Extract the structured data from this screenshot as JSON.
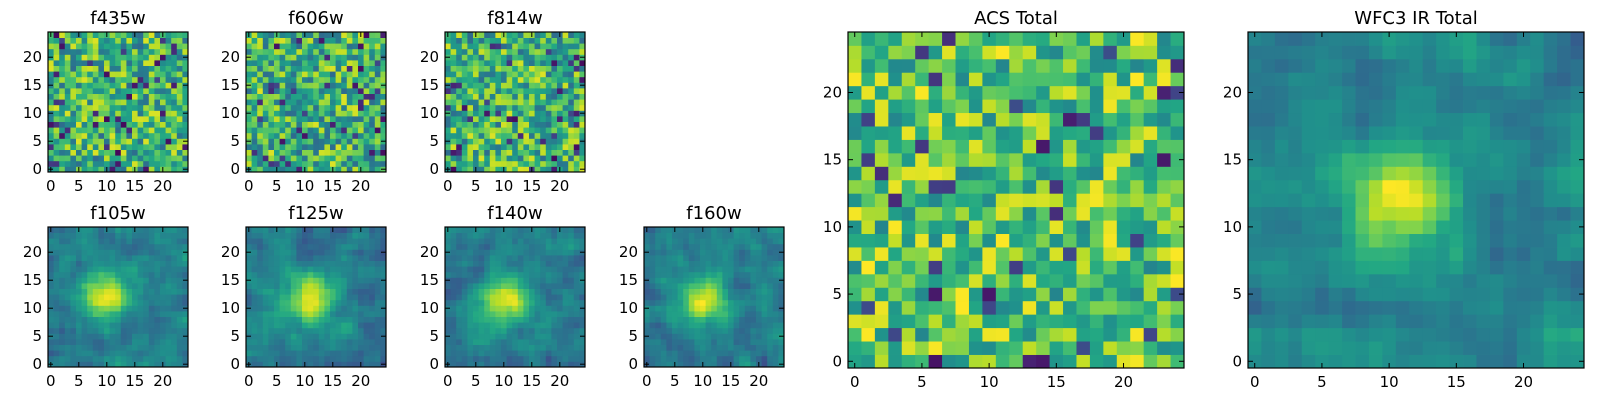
{
  "figure": {
    "description_free": true
  },
  "chart_data": [
    {
      "type": "heatmap",
      "title": "f435w",
      "colormap": "viridis",
      "grid_size": 25,
      "xlim": [
        0,
        24
      ],
      "ylim": [
        0,
        24
      ],
      "xticks": [
        0,
        5,
        10,
        15,
        20
      ],
      "yticks": [
        0,
        5,
        10,
        15,
        20
      ],
      "xlabel": "",
      "ylabel": "",
      "pattern": "noise",
      "seed": 11
    },
    {
      "type": "heatmap",
      "title": "f606w",
      "colormap": "viridis",
      "grid_size": 25,
      "xlim": [
        0,
        24
      ],
      "ylim": [
        0,
        24
      ],
      "xticks": [
        0,
        5,
        10,
        15,
        20
      ],
      "yticks": [
        0,
        5,
        10,
        15,
        20
      ],
      "xlabel": "",
      "ylabel": "",
      "pattern": "noise",
      "seed": 23
    },
    {
      "type": "heatmap",
      "title": "f814w",
      "colormap": "viridis",
      "grid_size": 25,
      "xlim": [
        0,
        24
      ],
      "ylim": [
        0,
        24
      ],
      "xticks": [
        0,
        5,
        10,
        15,
        20
      ],
      "yticks": [
        0,
        5,
        10,
        15,
        20
      ],
      "xlabel": "",
      "ylabel": "",
      "pattern": "noise",
      "seed": 37
    },
    {
      "type": "heatmap",
      "title": "f105w",
      "colormap": "viridis",
      "grid_size": 25,
      "xlim": [
        0,
        24
      ],
      "ylim": [
        0,
        24
      ],
      "xticks": [
        0,
        5,
        10,
        15,
        20
      ],
      "yticks": [
        0,
        5,
        10,
        15,
        20
      ],
      "xlabel": "",
      "ylabel": "",
      "pattern": "source",
      "source_center": [
        10,
        12.5
      ],
      "seed": 41
    },
    {
      "type": "heatmap",
      "title": "f125w",
      "colormap": "viridis",
      "grid_size": 25,
      "xlim": [
        0,
        24
      ],
      "ylim": [
        0,
        24
      ],
      "xticks": [
        0,
        5,
        10,
        15,
        20
      ],
      "yticks": [
        0,
        5,
        10,
        15,
        20
      ],
      "xlabel": "",
      "ylabel": "",
      "pattern": "source",
      "source_center": [
        11,
        11.5
      ],
      "seed": 53
    },
    {
      "type": "heatmap",
      "title": "f140w",
      "colormap": "viridis",
      "grid_size": 25,
      "xlim": [
        0,
        24
      ],
      "ylim": [
        0,
        24
      ],
      "xticks": [
        0,
        5,
        10,
        15,
        20
      ],
      "yticks": [
        0,
        5,
        10,
        15,
        20
      ],
      "xlabel": "",
      "ylabel": "",
      "pattern": "source",
      "source_center": [
        10,
        11.5
      ],
      "seed": 67
    },
    {
      "type": "heatmap",
      "title": "f160w",
      "colormap": "viridis",
      "grid_size": 25,
      "xlim": [
        0,
        24
      ],
      "ylim": [
        0,
        24
      ],
      "xticks": [
        0,
        5,
        10,
        15,
        20
      ],
      "yticks": [
        0,
        5,
        10,
        15,
        20
      ],
      "xlabel": "",
      "ylabel": "",
      "pattern": "source",
      "source_center": [
        10,
        11.5
      ],
      "seed": 79
    },
    {
      "type": "heatmap",
      "title": "ACS Total",
      "colormap": "viridis",
      "grid_size": 25,
      "xlim": [
        0,
        24
      ],
      "ylim": [
        0,
        24
      ],
      "xticks": [
        0,
        5,
        10,
        15,
        20
      ],
      "yticks": [
        0,
        5,
        10,
        15,
        20
      ],
      "xlabel": "",
      "ylabel": "",
      "pattern": "noise_bright",
      "seed": 97
    },
    {
      "type": "heatmap",
      "title": "WFC3 IR Total",
      "colormap": "viridis",
      "grid_size": 25,
      "xlim": [
        0,
        24
      ],
      "ylim": [
        0,
        24
      ],
      "xticks": [
        0,
        5,
        10,
        15,
        20
      ],
      "yticks": [
        0,
        5,
        10,
        15,
        20
      ],
      "xlabel": "",
      "ylabel": "",
      "pattern": "source",
      "source_center": [
        10.5,
        12
      ],
      "seed": 103
    }
  ]
}
